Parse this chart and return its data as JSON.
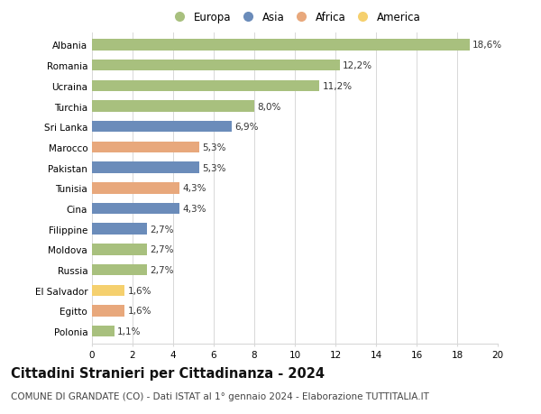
{
  "countries": [
    "Albania",
    "Romania",
    "Ucraina",
    "Turchia",
    "Sri Lanka",
    "Marocco",
    "Pakistan",
    "Tunisia",
    "Cina",
    "Filippine",
    "Moldova",
    "Russia",
    "El Salvador",
    "Egitto",
    "Polonia"
  ],
  "values": [
    18.6,
    12.2,
    11.2,
    8.0,
    6.9,
    5.3,
    5.3,
    4.3,
    4.3,
    2.7,
    2.7,
    2.7,
    1.6,
    1.6,
    1.1
  ],
  "labels": [
    "18,6%",
    "12,2%",
    "11,2%",
    "8,0%",
    "6,9%",
    "5,3%",
    "5,3%",
    "4,3%",
    "4,3%",
    "2,7%",
    "2,7%",
    "2,7%",
    "1,6%",
    "1,6%",
    "1,1%"
  ],
  "continents": [
    "Europa",
    "Europa",
    "Europa",
    "Europa",
    "Asia",
    "Africa",
    "Asia",
    "Africa",
    "Asia",
    "Asia",
    "Europa",
    "Europa",
    "America",
    "Africa",
    "Europa"
  ],
  "colors": {
    "Europa": "#a8c07e",
    "Asia": "#6b8cba",
    "Africa": "#e8a87c",
    "America": "#f5d06e"
  },
  "legend_order": [
    "Europa",
    "Asia",
    "Africa",
    "America"
  ],
  "title": "Cittadini Stranieri per Cittadinanza - 2024",
  "subtitle": "COMUNE DI GRANDATE (CO) - Dati ISTAT al 1° gennaio 2024 - Elaborazione TUTTITALIA.IT",
  "xlim": [
    0,
    20
  ],
  "xticks": [
    0,
    2,
    4,
    6,
    8,
    10,
    12,
    14,
    16,
    18,
    20
  ],
  "bar_height": 0.55,
  "background_color": "#ffffff",
  "grid_color": "#d8d8d8",
  "title_fontsize": 10.5,
  "subtitle_fontsize": 7.5,
  "label_fontsize": 7.5,
  "tick_fontsize": 7.5,
  "legend_fontsize": 8.5
}
